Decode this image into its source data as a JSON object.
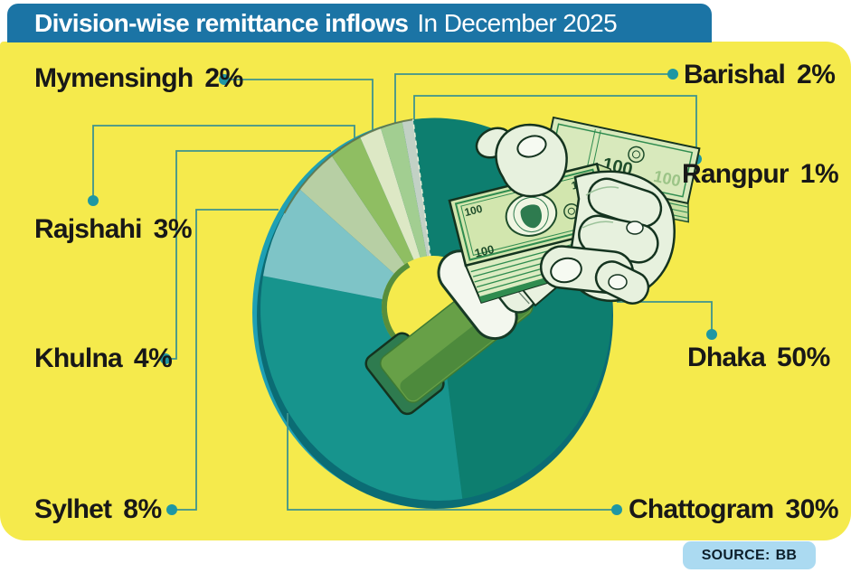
{
  "title": {
    "bold": "Division-wise remittance inflows",
    "regular": "In December 2025"
  },
  "source": {
    "label": "SOURCE:",
    "value": "BB"
  },
  "chart_data": {
    "type": "pie",
    "donut": true,
    "title": "Division-wise remittance inflows In December 2025",
    "unit": "%",
    "total": 100,
    "start_angle_deg": -8,
    "direction": "clockwise",
    "legend_position": "callout-labels",
    "center_illustration": "hand-holding-dollar-stacks",
    "series": [
      {
        "name": "Dhaka",
        "value": 50,
        "display": "50%",
        "color": "#0D7E6F",
        "callout_side": "right"
      },
      {
        "name": "Chattogram",
        "value": 30,
        "display": "30%",
        "color": "#17948D",
        "callout_side": "right"
      },
      {
        "name": "Sylhet",
        "value": 8,
        "display": "8%",
        "color": "#7EC4C7",
        "callout_side": "left"
      },
      {
        "name": "Khulna",
        "value": 4,
        "display": "4%",
        "color": "#B7CFA4",
        "callout_side": "left"
      },
      {
        "name": "Rajshahi",
        "value": 3,
        "display": "3%",
        "color": "#8FBE62",
        "callout_side": "left"
      },
      {
        "name": "Mymensingh",
        "value": 2,
        "display": "2%",
        "color": "#DDE8C5",
        "callout_side": "left"
      },
      {
        "name": "Barishal",
        "value": 2,
        "display": "2%",
        "color": "#A2CE91",
        "callout_side": "right"
      },
      {
        "name": "Rangpur",
        "value": 1,
        "display": "1%",
        "color": "#C2D1C5",
        "callout_side": "right"
      }
    ]
  },
  "ui": {
    "background": "#FFFFFF",
    "panel_yellow": "#F5EA4C",
    "header_bg": "#1B74A5",
    "header_text": "#FFFFFF",
    "label_color": "#181818",
    "leader_color": "#3E948E",
    "dot_color": "#1E97A3",
    "source_bg": "#ABDAF1",
    "source_text": "#0D1F2B"
  }
}
